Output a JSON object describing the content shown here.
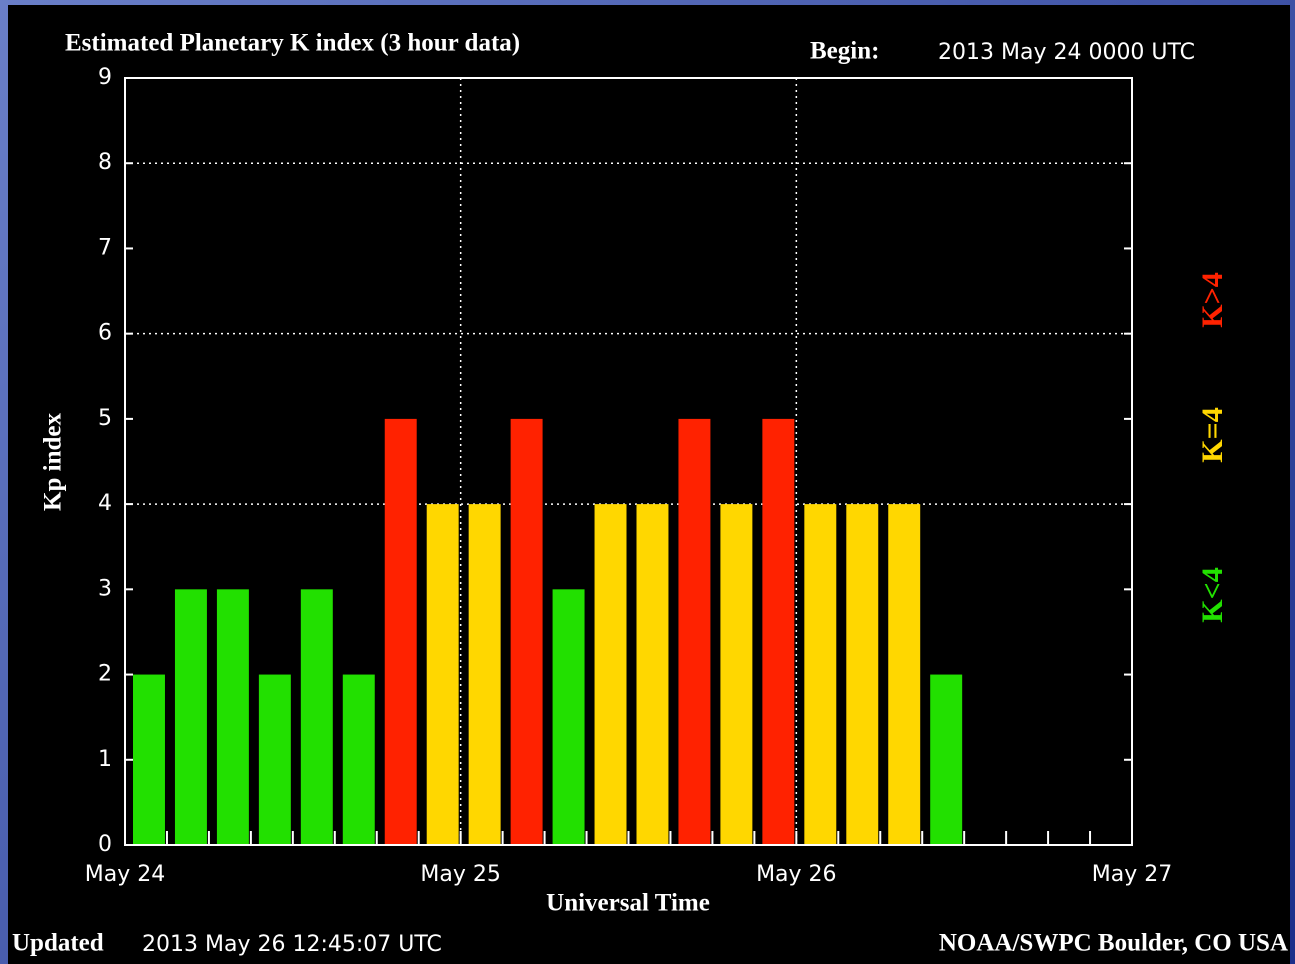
{
  "chart_data": {
    "type": "bar",
    "title": "Estimated Planetary K index (3 hour data)",
    "begin_label": "Begin:",
    "begin": "2013 May 24 0000 UTC",
    "ylabel": "Kp index",
    "xlabel": "Universal Time",
    "updated_label": "Updated",
    "updated": "2013 May 26 12:45:07 UTC",
    "credit": "NOAA/SWPC Boulder, CO USA",
    "categories": [
      null,
      null,
      null,
      null,
      null,
      null,
      null,
      null,
      null,
      null,
      null,
      null,
      null,
      null,
      null,
      null,
      null,
      null,
      null,
      null
    ],
    "values": [
      2,
      3,
      3,
      2,
      3,
      2,
      5,
      4,
      4,
      5,
      3,
      4,
      4,
      5,
      4,
      5,
      4,
      4,
      4,
      2
    ],
    "xticks": [
      "May 24",
      "May 25",
      "May 26",
      "May 27"
    ],
    "ylim": [
      0,
      9
    ],
    "yticks": [
      0,
      1,
      2,
      3,
      4,
      5,
      6,
      7,
      8,
      9
    ],
    "ygrid": [
      4,
      6,
      8
    ],
    "threshold": 4,
    "legend": [
      {
        "label": "K<4",
        "color": "#22e000"
      },
      {
        "label": "K=4",
        "color": "#ffd700"
      },
      {
        "label": "K>4",
        "color": "#ff2200"
      }
    ]
  }
}
